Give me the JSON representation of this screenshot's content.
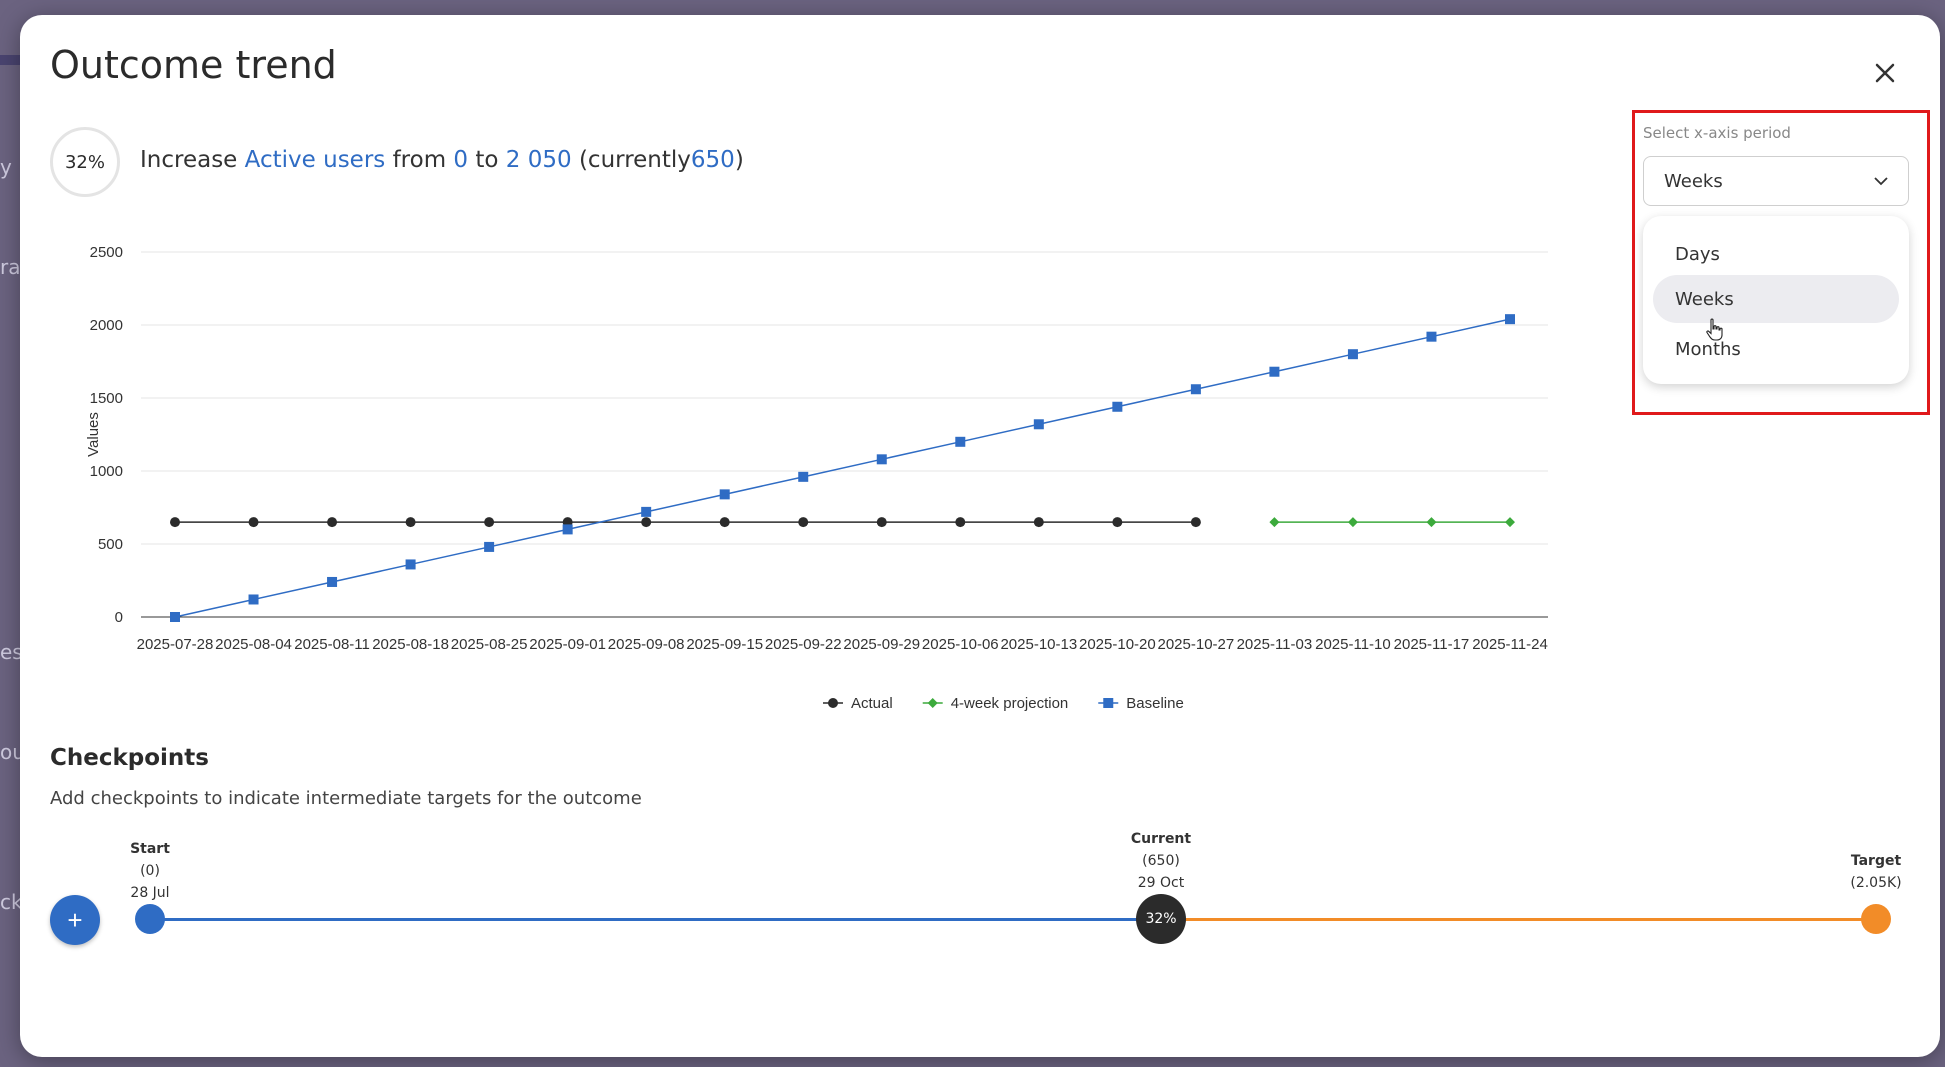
{
  "modal": {
    "title": "Outcome trend",
    "close_icon": "close-icon"
  },
  "summary": {
    "progress": "32%",
    "prefix": "Increase",
    "metric": "Active users",
    "from_word": "from",
    "start_value": "0",
    "to_word": "to",
    "target_value": "2 050",
    "currently_open": "(currently",
    "current_value": "650",
    "currently_close": ")"
  },
  "period_selector": {
    "label": "Select x-axis period",
    "selected": "Weeks",
    "options": [
      "Days",
      "Weeks",
      "Months"
    ],
    "highlighted_option": "Weeks"
  },
  "chart_data": {
    "type": "line",
    "ylabel": "Values",
    "xlabel": "",
    "ylim": [
      0,
      2500
    ],
    "yticks": [
      0,
      500,
      1000,
      1500,
      2000,
      2500
    ],
    "grid": true,
    "legend_position": "bottom",
    "categories": [
      "2025-07-28",
      "2025-08-04",
      "2025-08-11",
      "2025-08-18",
      "2025-08-25",
      "2025-09-01",
      "2025-09-08",
      "2025-09-15",
      "2025-09-22",
      "2025-09-29",
      "2025-10-06",
      "2025-10-13",
      "2025-10-20",
      "2025-10-27",
      "2025-11-03",
      "2025-11-10",
      "2025-11-17",
      "2025-11-24"
    ],
    "series": [
      {
        "name": "Actual",
        "color": "#2b2b2b",
        "marker": "circle",
        "values": [
          650,
          650,
          650,
          650,
          650,
          650,
          650,
          650,
          650,
          650,
          650,
          650,
          650,
          650,
          null,
          null,
          null,
          null
        ]
      },
      {
        "name": "4-week projection",
        "color": "#3caa3c",
        "marker": "diamond",
        "values": [
          null,
          null,
          null,
          null,
          null,
          null,
          null,
          null,
          null,
          null,
          null,
          null,
          null,
          null,
          650,
          650,
          650,
          650
        ]
      },
      {
        "name": "Baseline",
        "color": "#2f6cc4",
        "marker": "square",
        "values": [
          0,
          120,
          240,
          360,
          480,
          600,
          720,
          840,
          960,
          1080,
          1200,
          1320,
          1440,
          1560,
          1680,
          1800,
          1920,
          2040
        ]
      }
    ]
  },
  "checkpoints": {
    "title": "Checkpoints",
    "description": "Add checkpoints to indicate intermediate targets for the outcome",
    "add_label": "+",
    "start": {
      "name": "Start",
      "value": "(0)",
      "date": "28 Jul"
    },
    "current": {
      "name": "Current",
      "value": "(650)",
      "date": "29 Oct",
      "percent": "32%"
    },
    "target": {
      "name": "Target",
      "value": "(2.05K)"
    }
  },
  "background_fragments": [
    "y",
    "ra",
    "es",
    "ou",
    "ck"
  ]
}
